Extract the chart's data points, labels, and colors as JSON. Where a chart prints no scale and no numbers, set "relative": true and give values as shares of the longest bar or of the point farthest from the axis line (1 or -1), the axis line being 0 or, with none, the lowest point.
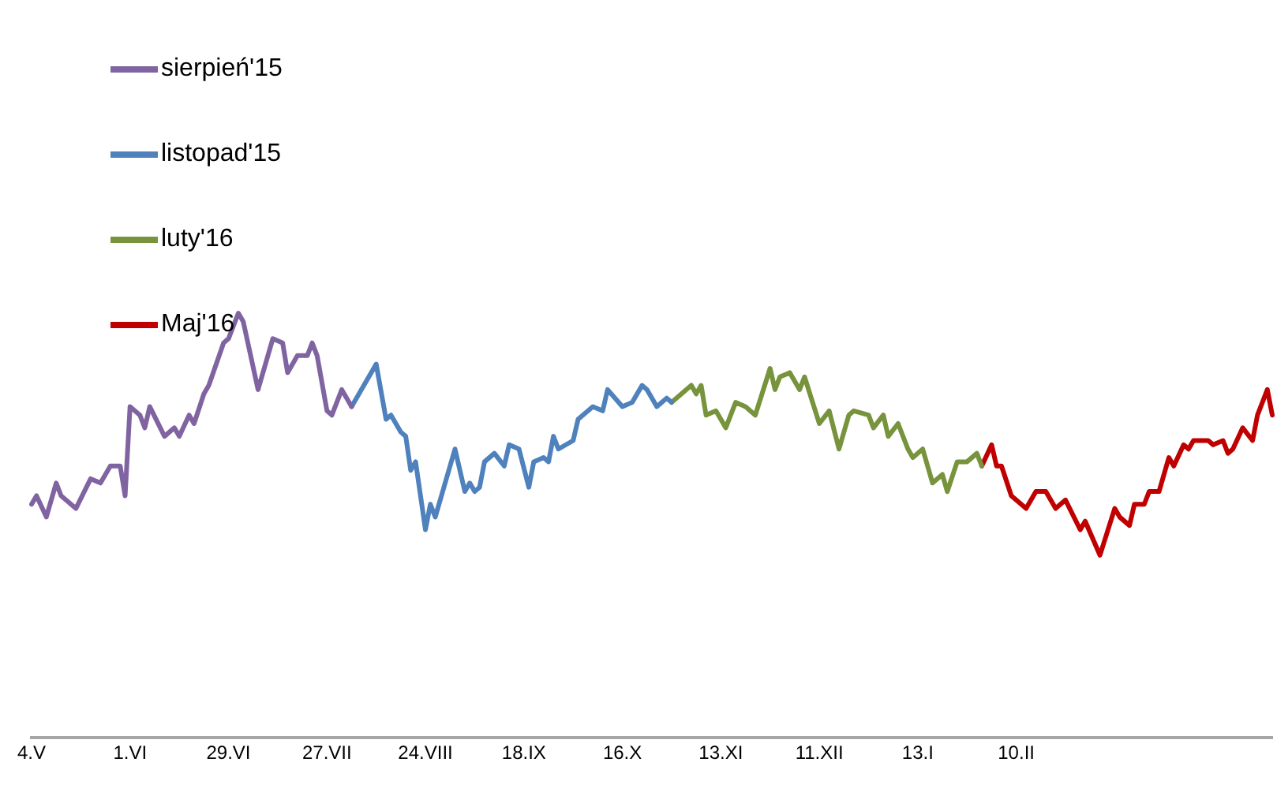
{
  "chart_data": {
    "type": "line",
    "relative": true,
    "legend": "top left",
    "grid": false,
    "marker": "none",
    "line_style": "solid",
    "categories": [
      "4.V",
      null,
      null,
      null,
      null,
      null,
      null,
      null,
      null,
      null,
      null,
      null,
      null,
      null,
      null,
      null,
      null,
      null,
      null,
      null,
      "1.VI",
      null,
      null,
      null,
      null,
      null,
      null,
      null,
      null,
      null,
      null,
      null,
      null,
      null,
      null,
      null,
      null,
      null,
      null,
      null,
      "29.VI",
      null,
      null,
      null,
      null,
      null,
      null,
      null,
      null,
      null,
      null,
      null,
      null,
      null,
      null,
      null,
      null,
      null,
      null,
      null,
      "27.VII",
      null,
      null,
      null,
      null,
      null,
      null,
      null,
      null,
      null,
      null,
      null,
      null,
      null,
      null,
      null,
      null,
      null,
      null,
      null,
      "24.VIII",
      null,
      null,
      null,
      null,
      null,
      null,
      null,
      null,
      null,
      null,
      null,
      null,
      null,
      null,
      null,
      null,
      null,
      null,
      null,
      "18.IX",
      null,
      null,
      null,
      null,
      null,
      null,
      null,
      null,
      null,
      null,
      null,
      null,
      null,
      null,
      null,
      null,
      null,
      null,
      null,
      "16.X",
      null,
      null,
      null,
      null,
      null,
      null,
      null,
      null,
      null,
      null,
      null,
      null,
      null,
      null,
      null,
      null,
      null,
      null,
      null,
      "13.XI",
      null,
      null,
      null,
      null,
      null,
      null,
      null,
      null,
      null,
      null,
      null,
      null,
      null,
      null,
      null,
      null,
      null,
      null,
      null,
      "11.XII",
      null,
      null,
      null,
      null,
      null,
      null,
      null,
      null,
      null,
      null,
      null,
      null,
      null,
      null,
      null,
      null,
      null,
      null,
      null,
      "13.I",
      null,
      null,
      null,
      null,
      null,
      null,
      null,
      null,
      null,
      null,
      null,
      null,
      null,
      null,
      null,
      null,
      null,
      null,
      null,
      "10.II",
      null,
      null,
      null,
      null,
      null,
      null,
      null,
      null,
      null,
      null,
      null,
      null,
      null,
      null,
      null,
      null,
      null,
      null,
      null,
      null,
      null,
      null,
      null,
      null,
      null,
      null,
      null,
      null,
      null,
      null,
      null,
      null,
      null,
      null,
      null,
      null,
      null,
      null,
      null,
      null,
      null,
      null,
      null,
      null,
      null,
      null,
      null,
      null,
      null,
      null,
      null,
      null
    ],
    "series": [
      {
        "name": "sierpień'15",
        "color": "#8064a2",
        "values": [
          0.55,
          0.57,
          null,
          0.52,
          null,
          0.6,
          0.57,
          null,
          null,
          0.54,
          null,
          null,
          0.61,
          null,
          0.6,
          null,
          0.64,
          null,
          0.64,
          0.57,
          0.78,
          null,
          0.76,
          0.73,
          0.78,
          null,
          null,
          0.71,
          null,
          0.73,
          0.71,
          null,
          0.76,
          0.74,
          null,
          0.81,
          0.83,
          null,
          null,
          0.93,
          0.94,
          null,
          1,
          0.98,
          null,
          null,
          0.82,
          null,
          null,
          0.94,
          null,
          0.93,
          0.86,
          null,
          0.9,
          null,
          0.9,
          0.93,
          0.9,
          null,
          0.77,
          0.76,
          null,
          0.82,
          null,
          0.78,
          null,
          null,
          null,
          null,
          null,
          null,
          null,
          null,
          null,
          null,
          null,
          null,
          null,
          null,
          null,
          null,
          null,
          null,
          null,
          null,
          null,
          null,
          null,
          null,
          null,
          null,
          null,
          null,
          null,
          null,
          null,
          null,
          null,
          null,
          null,
          null,
          null,
          null,
          null,
          null,
          null,
          null,
          null,
          null,
          null,
          null,
          null,
          null,
          null,
          null,
          null,
          null,
          null,
          null,
          null,
          null,
          null,
          null,
          null,
          null,
          null,
          null,
          null,
          null,
          null,
          null,
          null,
          null,
          null,
          null,
          null,
          null,
          null,
          null,
          null,
          null,
          null,
          null,
          null,
          null,
          null,
          null,
          null,
          null,
          null,
          null,
          null,
          null,
          null,
          null,
          null,
          null,
          null,
          null,
          null,
          null,
          null,
          null,
          null,
          null,
          null,
          null,
          null,
          null,
          null,
          null,
          null,
          null,
          null,
          null,
          null,
          null,
          null,
          null,
          null,
          null,
          null,
          null,
          null,
          null,
          null,
          null,
          null,
          null,
          null,
          null,
          null,
          null,
          null,
          null,
          null,
          null,
          null,
          null,
          null,
          null,
          null,
          null,
          null,
          null,
          null,
          null,
          null,
          null,
          null,
          null,
          null,
          null,
          null,
          null,
          null,
          null,
          null,
          null,
          null,
          null,
          null,
          null,
          null,
          null,
          null,
          null,
          null,
          null,
          null,
          null,
          null,
          null,
          null,
          null,
          null,
          null,
          null,
          null,
          null,
          null,
          null,
          null,
          null,
          null,
          null,
          null,
          null,
          null,
          null,
          null,
          null
        ]
      },
      {
        "name": "listopad'15",
        "color": "#4f81bd",
        "values": [
          null,
          null,
          null,
          null,
          null,
          null,
          null,
          null,
          null,
          null,
          null,
          null,
          null,
          null,
          null,
          null,
          null,
          null,
          null,
          null,
          null,
          null,
          null,
          null,
          null,
          null,
          null,
          null,
          null,
          null,
          null,
          null,
          null,
          null,
          null,
          null,
          null,
          null,
          null,
          null,
          null,
          null,
          null,
          null,
          null,
          null,
          null,
          null,
          null,
          null,
          null,
          null,
          null,
          null,
          null,
          null,
          null,
          null,
          null,
          null,
          null,
          null,
          null,
          null,
          null,
          0.78,
          null,
          null,
          null,
          null,
          0.88,
          null,
          0.75,
          0.76,
          null,
          0.72,
          0.71,
          0.63,
          0.65,
          null,
          0.49,
          0.55,
          0.52,
          null,
          null,
          null,
          0.68,
          null,
          0.58,
          0.6,
          0.58,
          0.59,
          0.65,
          null,
          0.67,
          null,
          0.64,
          0.69,
          null,
          0.68,
          null,
          0.59,
          0.65,
          null,
          0.66,
          0.65,
          0.71,
          0.68,
          null,
          null,
          0.7,
          0.75,
          null,
          null,
          0.78,
          null,
          0.77,
          0.82,
          null,
          null,
          0.78,
          null,
          0.79,
          null,
          0.83,
          0.82,
          null,
          0.78,
          null,
          0.8,
          0.79,
          null,
          null,
          null,
          null,
          null,
          null,
          null,
          null,
          null,
          null,
          null,
          null,
          null,
          null,
          null,
          null,
          null,
          null,
          null,
          null,
          null,
          null,
          null,
          null,
          null,
          null,
          null,
          null,
          null,
          null,
          null,
          null,
          null,
          null,
          null,
          null,
          null,
          null,
          null,
          null,
          null,
          null,
          null,
          null,
          null,
          null,
          null,
          null,
          null,
          null,
          null,
          null,
          null,
          null,
          null,
          null,
          null,
          null,
          null,
          null,
          null,
          null,
          null,
          null,
          null,
          null,
          null,
          null,
          null,
          null,
          null,
          null,
          null,
          null,
          null,
          null,
          null,
          null,
          null,
          null,
          null,
          null,
          null,
          null,
          null,
          null,
          null,
          null,
          null,
          null,
          null,
          null,
          null,
          null,
          null,
          null,
          null,
          null,
          null,
          null,
          null,
          null,
          null,
          null,
          null,
          null,
          null,
          null,
          null,
          null,
          null,
          null,
          null,
          null,
          null,
          null,
          null,
          null,
          null,
          null,
          null,
          null
        ]
      },
      {
        "name": "luty'16",
        "color": "#77933c",
        "values": [
          null,
          null,
          null,
          null,
          null,
          null,
          null,
          null,
          null,
          null,
          null,
          null,
          null,
          null,
          null,
          null,
          null,
          null,
          null,
          null,
          null,
          null,
          null,
          null,
          null,
          null,
          null,
          null,
          null,
          null,
          null,
          null,
          null,
          null,
          null,
          null,
          null,
          null,
          null,
          null,
          null,
          null,
          null,
          null,
          null,
          null,
          null,
          null,
          null,
          null,
          null,
          null,
          null,
          null,
          null,
          null,
          null,
          null,
          null,
          null,
          null,
          null,
          null,
          null,
          null,
          null,
          null,
          null,
          null,
          null,
          null,
          null,
          null,
          null,
          null,
          null,
          null,
          null,
          null,
          null,
          null,
          null,
          null,
          null,
          null,
          null,
          null,
          null,
          null,
          null,
          null,
          null,
          null,
          null,
          null,
          null,
          null,
          null,
          null,
          null,
          null,
          null,
          null,
          null,
          null,
          null,
          null,
          null,
          null,
          null,
          null,
          null,
          null,
          null,
          null,
          null,
          null,
          null,
          null,
          null,
          null,
          null,
          null,
          null,
          null,
          null,
          null,
          null,
          null,
          null,
          0.79,
          null,
          0.81,
          null,
          0.83,
          0.81,
          0.83,
          0.76,
          null,
          0.77,
          null,
          0.73,
          null,
          0.79,
          null,
          0.78,
          null,
          0.76,
          null,
          null,
          0.87,
          0.82,
          0.85,
          null,
          0.86,
          null,
          0.82,
          0.85,
          null,
          null,
          0.74,
          null,
          0.77,
          null,
          0.68,
          null,
          0.76,
          0.77,
          null,
          null,
          0.76,
          0.73,
          null,
          0.76,
          0.71,
          null,
          0.74,
          null,
          0.68,
          0.66,
          null,
          0.68,
          null,
          0.6,
          null,
          0.62,
          0.58,
          null,
          0.65,
          null,
          0.65,
          null,
          0.67,
          0.64,
          null,
          null,
          null,
          null,
          null,
          null,
          null,
          null,
          null,
          null,
          null,
          null,
          null,
          null,
          null,
          null,
          null,
          null,
          null,
          null,
          null,
          null,
          null,
          null,
          null,
          null,
          null,
          null,
          null,
          null,
          null,
          null,
          null,
          null,
          null,
          null,
          null,
          null,
          null,
          null,
          null,
          null,
          null,
          null,
          null,
          null,
          null,
          null,
          null,
          null,
          null,
          null,
          null,
          null,
          null,
          null,
          null,
          null,
          null
        ]
      },
      {
        "name": "Maj'16",
        "color": "#c00000",
        "values": [
          null,
          null,
          null,
          null,
          null,
          null,
          null,
          null,
          null,
          null,
          null,
          null,
          null,
          null,
          null,
          null,
          null,
          null,
          null,
          null,
          null,
          null,
          null,
          null,
          null,
          null,
          null,
          null,
          null,
          null,
          null,
          null,
          null,
          null,
          null,
          null,
          null,
          null,
          null,
          null,
          null,
          null,
          null,
          null,
          null,
          null,
          null,
          null,
          null,
          null,
          null,
          null,
          null,
          null,
          null,
          null,
          null,
          null,
          null,
          null,
          null,
          null,
          null,
          null,
          null,
          null,
          null,
          null,
          null,
          null,
          null,
          null,
          null,
          null,
          null,
          null,
          null,
          null,
          null,
          null,
          null,
          null,
          null,
          null,
          null,
          null,
          null,
          null,
          null,
          null,
          null,
          null,
          null,
          null,
          null,
          null,
          null,
          null,
          null,
          null,
          null,
          null,
          null,
          null,
          null,
          null,
          null,
          null,
          null,
          null,
          null,
          null,
          null,
          null,
          null,
          null,
          null,
          null,
          null,
          null,
          null,
          null,
          null,
          null,
          null,
          null,
          null,
          null,
          null,
          null,
          null,
          null,
          null,
          null,
          null,
          null,
          null,
          null,
          null,
          null,
          null,
          null,
          null,
          null,
          null,
          null,
          null,
          null,
          null,
          null,
          null,
          null,
          null,
          null,
          null,
          null,
          null,
          null,
          null,
          null,
          null,
          null,
          null,
          null,
          null,
          null,
          null,
          null,
          null,
          null,
          null,
          null,
          null,
          null,
          null,
          null,
          null,
          null,
          null,
          null,
          null,
          null,
          null,
          null,
          null,
          null,
          null,
          null,
          null,
          null,
          null,
          null,
          null,
          0.64,
          null,
          0.69,
          0.64,
          0.64,
          null,
          0.57,
          null,
          null,
          0.54,
          null,
          0.58,
          null,
          0.58,
          null,
          0.54,
          null,
          0.56,
          null,
          null,
          0.49,
          0.51,
          null,
          null,
          0.43,
          null,
          null,
          0.54,
          0.52,
          null,
          0.5,
          0.55,
          null,
          0.55,
          0.58,
          null,
          0.58,
          null,
          0.66,
          0.64,
          null,
          0.69,
          0.68,
          0.7,
          null,
          null,
          0.7,
          0.69,
          null,
          0.7,
          0.67,
          0.68,
          null,
          0.73,
          null,
          0.7,
          0.76,
          null,
          0.82,
          0.76
        ]
      }
    ]
  }
}
